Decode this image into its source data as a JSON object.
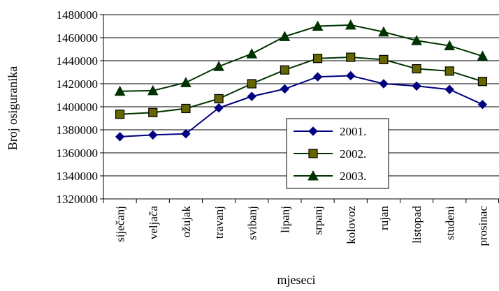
{
  "chart_data": {
    "type": "line",
    "xlabel": "mjeseci",
    "ylabel": "Broj osiguranika",
    "categories": [
      "siječanj",
      "veljača",
      "ožujak",
      "travanj",
      "svibanj",
      "lipanj",
      "srpanj",
      "kolovoz",
      "rujan",
      "listopad",
      "studeni",
      "prosinac"
    ],
    "ylim": [
      1320000,
      1480000
    ],
    "yticks": [
      1320000,
      1340000,
      1360000,
      1380000,
      1400000,
      1420000,
      1440000,
      1460000,
      1480000
    ],
    "grid": "horizontal",
    "legend_position": "inside-lower-right",
    "series": [
      {
        "name": "2001.",
        "marker": "diamond",
        "color": "#000080",
        "values": [
          1374000,
          1375500,
          1376500,
          1399000,
          1409000,
          1415500,
          1426000,
          1427000,
          1420000,
          1418000,
          1415000,
          1402000
        ]
      },
      {
        "name": "2002.",
        "marker": "square",
        "color": "#003300",
        "values": [
          1393500,
          1395000,
          1398500,
          1407000,
          1420000,
          1432000,
          1442000,
          1443000,
          1441000,
          1433000,
          1431000,
          1422000
        ]
      },
      {
        "name": "2003.",
        "marker": "triangle",
        "color": "#003300",
        "values": [
          1413500,
          1414000,
          1421000,
          1435000,
          1446000,
          1461000,
          1470000,
          1471000,
          1465000,
          1457500,
          1453000,
          1444000
        ]
      }
    ]
  }
}
